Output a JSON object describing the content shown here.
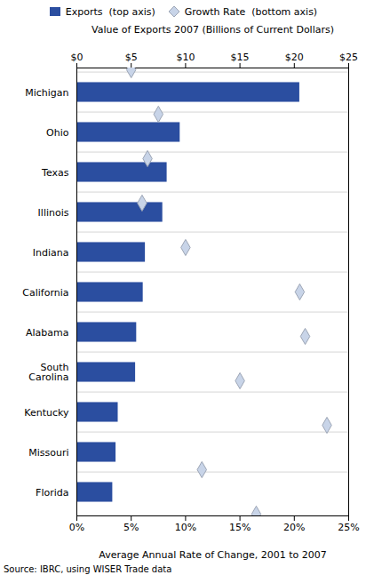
{
  "chart_data": {
    "type": "bar",
    "orientation": "horizontal",
    "categories": [
      "Michigan",
      "Ohio",
      "Texas",
      "Illinois",
      "Indiana",
      "California",
      "Alabama",
      "South\nCarolina",
      "Kentucky",
      "Missouri",
      "Florida"
    ],
    "series": [
      {
        "name": "Exports  (top axis)",
        "type": "bar",
        "color": "#2B4EA0",
        "values": [
          20.5,
          9.5,
          8.3,
          7.9,
          6.3,
          6.1,
          5.5,
          5.4,
          3.8,
          3.6,
          3.3
        ]
      },
      {
        "name": "Growth Rate  (bottom axis)",
        "type": "scatter",
        "marker": "diamond",
        "color": "#C8D4E8",
        "axis": "x2",
        "values": [
          5.0,
          7.5,
          6.5,
          6.0,
          10.0,
          20.5,
          21.0,
          15.0,
          23.0,
          11.5,
          16.5
        ]
      }
    ],
    "xlabel": "Value of Exports 2007 (Billions of Current Dollars)",
    "xlim": [
      0,
      25
    ],
    "xticks": [
      {
        "value": 0,
        "label": "$0"
      },
      {
        "value": 5,
        "label": "$5"
      },
      {
        "value": 10,
        "label": "$10"
      },
      {
        "value": 15,
        "label": "$15"
      },
      {
        "value": 20,
        "label": "$20"
      },
      {
        "value": 25,
        "label": "$25"
      }
    ],
    "x2label": "Average Annual Rate of Change, 2001 to 2007",
    "x2lim": [
      0,
      25
    ],
    "x2ticks": [
      {
        "value": 0,
        "label": "0%"
      },
      {
        "value": 5,
        "label": "5%"
      },
      {
        "value": 10,
        "label": "10%"
      },
      {
        "value": 15,
        "label": "15%"
      },
      {
        "value": 20,
        "label": "20%"
      },
      {
        "value": 25,
        "label": "25%"
      }
    ],
    "grid": true,
    "legend": "top",
    "source": "Source: IBRC, using WISER Trade data"
  }
}
